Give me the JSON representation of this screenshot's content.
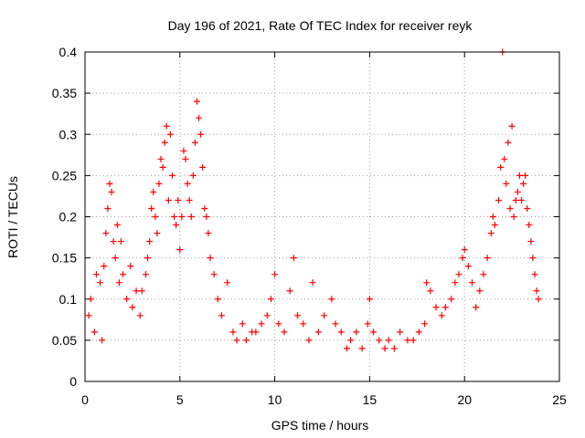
{
  "chart_data": {
    "type": "scatter",
    "title": "Day 196 of 2021, Rate Of TEC Index for receiver reyk",
    "xlabel": "GPS time / hours",
    "ylabel": "ROTI / TECUs",
    "xlim": [
      0,
      25
    ],
    "ylim": [
      0,
      0.4
    ],
    "xticks": [
      0,
      5,
      10,
      15,
      20,
      25
    ],
    "xtick_labels": [
      "0",
      "5",
      "10",
      "15",
      "20",
      "25"
    ],
    "yticks": [
      0,
      0.05,
      0.1,
      0.15,
      0.2,
      0.25,
      0.3,
      0.35,
      0.4
    ],
    "ytick_labels": [
      "0",
      "0.05",
      "0.1",
      "0.15",
      "0.2",
      "0.25",
      "0.3",
      "0.35",
      "0.4"
    ],
    "grid": true,
    "marker": "+",
    "marker_color": "#ff0000",
    "series": [
      {
        "name": "ROTI",
        "points": [
          [
            0.2,
            0.08
          ],
          [
            0.3,
            0.1
          ],
          [
            0.5,
            0.06
          ],
          [
            0.6,
            0.13
          ],
          [
            0.8,
            0.12
          ],
          [
            0.9,
            0.05
          ],
          [
            1.0,
            0.14
          ],
          [
            1.1,
            0.18
          ],
          [
            1.2,
            0.21
          ],
          [
            1.3,
            0.24
          ],
          [
            1.4,
            0.23
          ],
          [
            1.5,
            0.17
          ],
          [
            1.6,
            0.15
          ],
          [
            1.7,
            0.19
          ],
          [
            1.8,
            0.12
          ],
          [
            1.9,
            0.17
          ],
          [
            2.0,
            0.13
          ],
          [
            2.2,
            0.1
          ],
          [
            2.4,
            0.14
          ],
          [
            2.5,
            0.09
          ],
          [
            2.7,
            0.11
          ],
          [
            2.9,
            0.08
          ],
          [
            3.0,
            0.11
          ],
          [
            3.2,
            0.13
          ],
          [
            3.3,
            0.15
          ],
          [
            3.4,
            0.17
          ],
          [
            3.5,
            0.21
          ],
          [
            3.6,
            0.23
          ],
          [
            3.7,
            0.2
          ],
          [
            3.8,
            0.18
          ],
          [
            3.9,
            0.24
          ],
          [
            4.0,
            0.27
          ],
          [
            4.1,
            0.26
          ],
          [
            4.2,
            0.29
          ],
          [
            4.3,
            0.31
          ],
          [
            4.4,
            0.22
          ],
          [
            4.5,
            0.3
          ],
          [
            4.6,
            0.25
          ],
          [
            4.7,
            0.2
          ],
          [
            4.8,
            0.19
          ],
          [
            4.9,
            0.22
          ],
          [
            5.0,
            0.16
          ],
          [
            5.1,
            0.2
          ],
          [
            5.2,
            0.28
          ],
          [
            5.3,
            0.27
          ],
          [
            5.4,
            0.24
          ],
          [
            5.5,
            0.22
          ],
          [
            5.6,
            0.2
          ],
          [
            5.7,
            0.25
          ],
          [
            5.8,
            0.29
          ],
          [
            5.9,
            0.34
          ],
          [
            6.0,
            0.32
          ],
          [
            6.1,
            0.3
          ],
          [
            6.2,
            0.26
          ],
          [
            6.3,
            0.21
          ],
          [
            6.4,
            0.2
          ],
          [
            6.5,
            0.18
          ],
          [
            6.6,
            0.15
          ],
          [
            6.8,
            0.13
          ],
          [
            7.0,
            0.1
          ],
          [
            7.2,
            0.08
          ],
          [
            7.5,
            0.12
          ],
          [
            7.8,
            0.06
          ],
          [
            8.0,
            0.05
          ],
          [
            8.3,
            0.07
          ],
          [
            8.5,
            0.05
          ],
          [
            8.8,
            0.06
          ],
          [
            9.0,
            0.06
          ],
          [
            9.3,
            0.07
          ],
          [
            9.6,
            0.08
          ],
          [
            9.8,
            0.1
          ],
          [
            10.0,
            0.13
          ],
          [
            10.2,
            0.07
          ],
          [
            10.5,
            0.06
          ],
          [
            10.8,
            0.11
          ],
          [
            11.0,
            0.15
          ],
          [
            11.2,
            0.08
          ],
          [
            11.5,
            0.07
          ],
          [
            11.8,
            0.05
          ],
          [
            12.0,
            0.12
          ],
          [
            12.3,
            0.06
          ],
          [
            12.6,
            0.08
          ],
          [
            13.0,
            0.1
          ],
          [
            13.2,
            0.07
          ],
          [
            13.5,
            0.06
          ],
          [
            13.8,
            0.04
          ],
          [
            14.0,
            0.05
          ],
          [
            14.3,
            0.06
          ],
          [
            14.6,
            0.04
          ],
          [
            14.9,
            0.07
          ],
          [
            15.0,
            0.1
          ],
          [
            15.2,
            0.06
          ],
          [
            15.5,
            0.05
          ],
          [
            15.8,
            0.04
          ],
          [
            16.0,
            0.05
          ],
          [
            16.3,
            0.04
          ],
          [
            16.6,
            0.06
          ],
          [
            17.0,
            0.05
          ],
          [
            17.3,
            0.05
          ],
          [
            17.6,
            0.06
          ],
          [
            17.9,
            0.07
          ],
          [
            18.0,
            0.12
          ],
          [
            18.2,
            0.11
          ],
          [
            18.5,
            0.09
          ],
          [
            18.8,
            0.08
          ],
          [
            19.0,
            0.09
          ],
          [
            19.3,
            0.1
          ],
          [
            19.5,
            0.12
          ],
          [
            19.7,
            0.13
          ],
          [
            19.9,
            0.15
          ],
          [
            20.0,
            0.16
          ],
          [
            20.2,
            0.14
          ],
          [
            20.4,
            0.12
          ],
          [
            20.6,
            0.09
          ],
          [
            20.8,
            0.11
          ],
          [
            21.0,
            0.13
          ],
          [
            21.2,
            0.15
          ],
          [
            21.4,
            0.18
          ],
          [
            21.5,
            0.2
          ],
          [
            21.6,
            0.19
          ],
          [
            21.8,
            0.22
          ],
          [
            21.9,
            0.26
          ],
          [
            22.0,
            0.4
          ],
          [
            22.1,
            0.27
          ],
          [
            22.2,
            0.24
          ],
          [
            22.3,
            0.29
          ],
          [
            22.4,
            0.21
          ],
          [
            22.5,
            0.31
          ],
          [
            22.6,
            0.2
          ],
          [
            22.7,
            0.22
          ],
          [
            22.8,
            0.23
          ],
          [
            22.9,
            0.25
          ],
          [
            23.0,
            0.22
          ],
          [
            23.1,
            0.24
          ],
          [
            23.2,
            0.25
          ],
          [
            23.3,
            0.21
          ],
          [
            23.4,
            0.19
          ],
          [
            23.5,
            0.17
          ],
          [
            23.6,
            0.15
          ],
          [
            23.7,
            0.13
          ],
          [
            23.8,
            0.11
          ],
          [
            23.9,
            0.1
          ]
        ]
      }
    ]
  }
}
